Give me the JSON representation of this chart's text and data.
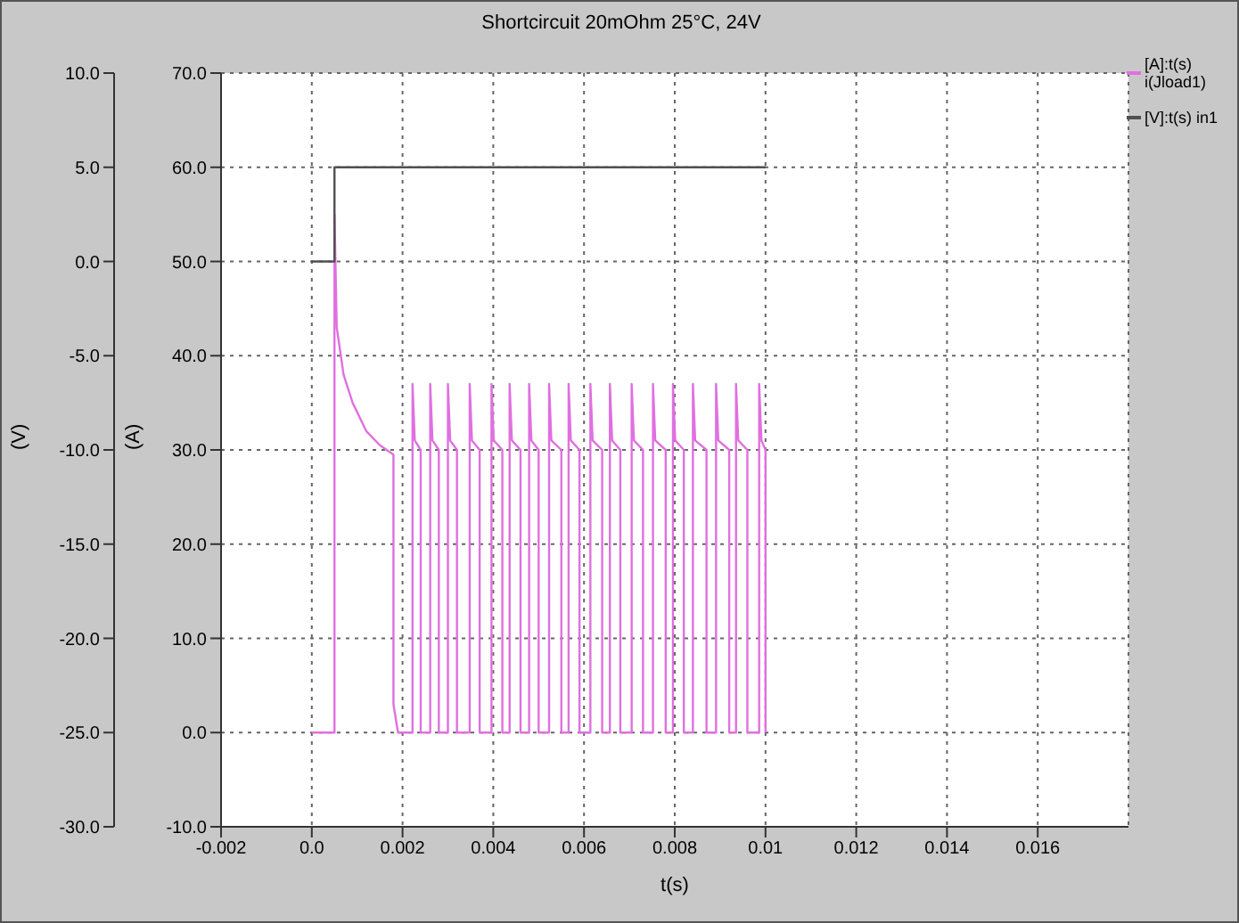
{
  "chart_data": {
    "type": "line",
    "title": "Shortcircuit 20mOhm 25°C, 24V",
    "xlabel": "t(s)",
    "ylabel": "(A)",
    "y2label": "(V)",
    "xlim": [
      -0.002,
      0.018
    ],
    "xticks": [
      -0.002,
      {
        "value": 0,
        "label": "0.0"
      },
      0.002,
      0.004,
      0.006,
      0.008,
      0.01,
      0.012,
      0.014,
      0.016
    ],
    "ylim": [
      -10,
      70
    ],
    "yticks": [
      {
        "value": -10,
        "label": "-10.0"
      },
      {
        "value": 0,
        "label": "0.0"
      },
      {
        "value": 10,
        "label": "10.0"
      },
      {
        "value": 20,
        "label": "20.0"
      },
      {
        "value": 30,
        "label": "30.0"
      },
      {
        "value": 40,
        "label": "40.0"
      },
      {
        "value": 50,
        "label": "50.0"
      },
      {
        "value": 60,
        "label": "60.0"
      },
      {
        "value": 70,
        "label": "70.0"
      }
    ],
    "y2lim": [
      -30,
      10
    ],
    "y2ticks": [
      {
        "value": -30,
        "label": "-30.0"
      },
      {
        "value": -25,
        "label": "-25.0"
      },
      {
        "value": -20,
        "label": "-20.0"
      },
      {
        "value": -15,
        "label": "-15.0"
      },
      {
        "value": -10,
        "label": "-10.0"
      },
      {
        "value": -5,
        "label": "-5.0"
      },
      {
        "value": 0,
        "label": "0.0"
      },
      {
        "value": 5,
        "label": "5.0"
      },
      {
        "value": 10,
        "label": "10.0"
      }
    ],
    "grid": true,
    "legend": "right",
    "marker": "none",
    "line_style": "solid",
    "series": [
      {
        "name": "[A]:t(s) i(Jload1)",
        "color": "#e070e0",
        "axis": "y",
        "x": [
          0,
          0.0005,
          0.0005,
          0.00055,
          0.0007,
          0.0009,
          0.0012,
          0.0015,
          0.0018,
          0.0018,
          0.0019,
          0.00222,
          0.00222,
          0.00227,
          0.0024,
          0.0024,
          0.00261,
          0.00261,
          0.00266,
          0.0028,
          0.0028,
          0.003,
          0.003,
          0.00305,
          0.0032,
          0.0032,
          0.00348,
          0.00348,
          0.00353,
          0.0037,
          0.0037,
          0.00396,
          0.00396,
          0.00401,
          0.0042,
          0.0042,
          0.00436,
          0.00436,
          0.00441,
          0.0046,
          0.0046,
          0.00479,
          0.00479,
          0.00484,
          0.005,
          0.005,
          0.00523,
          0.00523,
          0.00528,
          0.0055,
          0.0055,
          0.00566,
          0.00566,
          0.00571,
          0.0059,
          0.0059,
          0.00614,
          0.00614,
          0.00619,
          0.0064,
          0.0064,
          0.00657,
          0.00657,
          0.00662,
          0.0068,
          0.0068,
          0.00705,
          0.00705,
          0.0071,
          0.0073,
          0.0073,
          0.00752,
          0.00752,
          0.00757,
          0.0078,
          0.0078,
          0.00796,
          0.00796,
          0.00801,
          0.0082,
          0.0082,
          0.0084,
          0.0084,
          0.00845,
          0.0087,
          0.0087,
          0.00891,
          0.00891,
          0.00896,
          0.0092,
          0.0092,
          0.00935,
          0.00935,
          0.0094,
          0.0096,
          0.0096,
          0.00986,
          0.00986,
          0.00991,
          0.01,
          0.01
        ],
        "values": [
          0,
          0,
          55,
          43,
          38,
          35,
          32,
          30.5,
          29.5,
          3,
          0,
          0,
          37,
          31,
          30,
          0,
          0,
          37,
          31,
          30,
          0,
          0,
          37,
          31,
          30,
          0,
          0,
          37,
          31,
          30,
          0,
          0,
          37,
          31,
          30,
          0,
          0,
          37,
          31,
          30,
          0,
          0,
          37,
          31,
          30,
          0,
          0,
          37,
          31,
          30,
          0,
          0,
          37,
          31,
          30,
          0,
          0,
          37,
          31,
          30,
          0,
          0,
          37,
          31,
          30,
          0,
          0,
          37,
          31,
          30,
          0,
          0,
          37,
          31,
          30,
          0,
          0,
          37,
          31,
          30,
          0,
          0,
          37,
          31,
          30,
          0,
          0,
          37,
          31,
          30,
          0,
          0,
          37,
          31,
          30,
          0,
          0,
          37,
          31,
          30,
          0
        ]
      },
      {
        "name": "[V]:t(s) in1",
        "color": "#505050",
        "axis": "y2",
        "x": [
          0,
          0.0005,
          0.0005,
          0.01
        ],
        "values": [
          0,
          0,
          5,
          5
        ]
      }
    ]
  }
}
